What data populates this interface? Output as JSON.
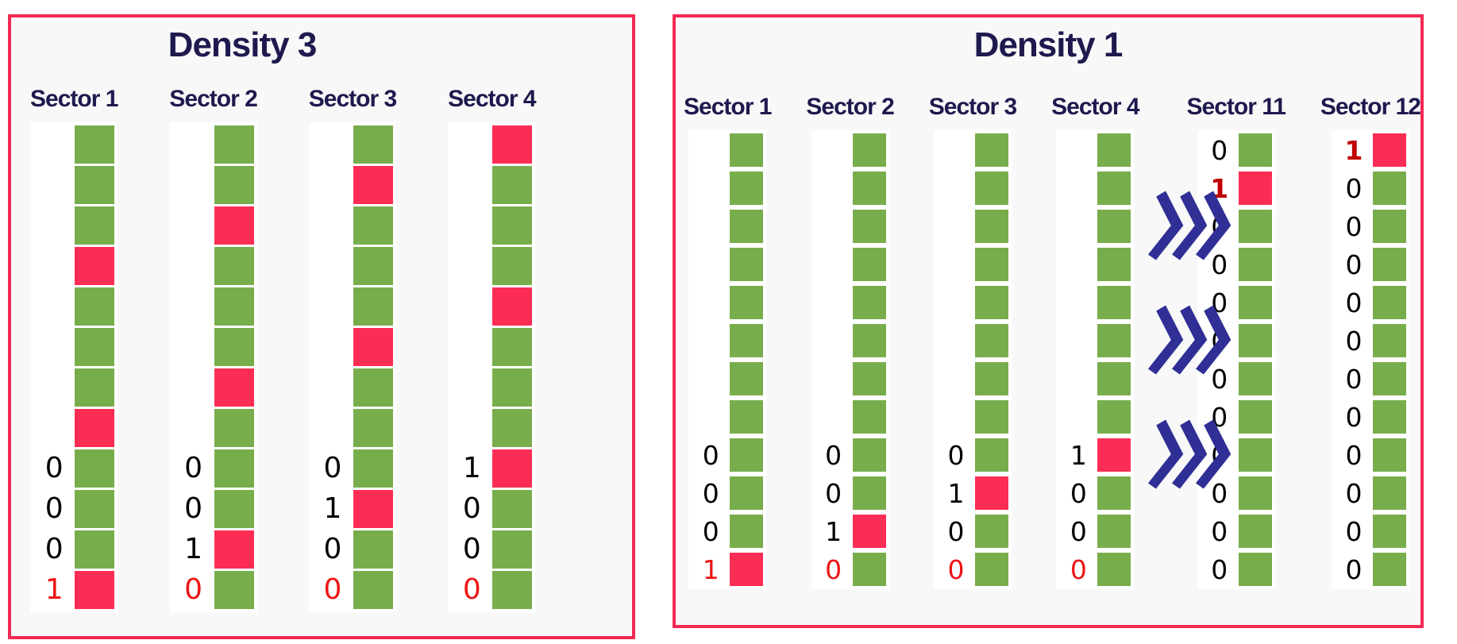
{
  "colors": {
    "green": "#78ad4c",
    "red": "#fc2d55",
    "border": "#f22952",
    "panel_bg": "#f8f8f8",
    "title_text": "#1e1a4e",
    "chevron": "#2f2f96",
    "label_black": "#000000",
    "label_red": "#ee1515",
    "label_darkred": "#c00000"
  },
  "panels": [
    {
      "title": "Density 3",
      "sectors": [
        {
          "name": "Sector 1",
          "cells": [
            "G",
            "G",
            "G",
            "R",
            "G",
            "G",
            "G",
            "R",
            "G",
            "G",
            "G",
            "R"
          ],
          "labels": [
            "",
            "",
            "",
            "",
            "",
            "",
            "",
            "",
            "0",
            "0",
            "0",
            "1"
          ],
          "label_colors": [
            "",
            "",
            "",
            "",
            "",
            "",
            "",
            "",
            "black",
            "black",
            "black",
            "red"
          ]
        },
        {
          "name": "Sector 2",
          "cells": [
            "G",
            "G",
            "R",
            "G",
            "G",
            "G",
            "R",
            "G",
            "G",
            "G",
            "R",
            "G"
          ],
          "labels": [
            "",
            "",
            "",
            "",
            "",
            "",
            "",
            "",
            "0",
            "0",
            "1",
            "0"
          ],
          "label_colors": [
            "",
            "",
            "",
            "",
            "",
            "",
            "",
            "",
            "black",
            "black",
            "black",
            "red"
          ]
        },
        {
          "name": "Sector 3",
          "cells": [
            "G",
            "R",
            "G",
            "G",
            "G",
            "R",
            "G",
            "G",
            "G",
            "R",
            "G",
            "G"
          ],
          "labels": [
            "",
            "",
            "",
            "",
            "",
            "",
            "",
            "",
            "0",
            "1",
            "0",
            "0"
          ],
          "label_colors": [
            "",
            "",
            "",
            "",
            "",
            "",
            "",
            "",
            "black",
            "black",
            "black",
            "red"
          ]
        },
        {
          "name": "Sector 4",
          "cells": [
            "R",
            "G",
            "G",
            "G",
            "R",
            "G",
            "G",
            "G",
            "R",
            "G",
            "G",
            "G"
          ],
          "labels": [
            "",
            "",
            "",
            "",
            "",
            "",
            "",
            "",
            "1",
            "0",
            "0",
            "0"
          ],
          "label_colors": [
            "",
            "",
            "",
            "",
            "",
            "",
            "",
            "",
            "black",
            "black",
            "black",
            "red"
          ]
        }
      ]
    },
    {
      "title": "Density 1",
      "chevrons": {
        "icon": "triple-chevron-right",
        "count": 3,
        "at_rows": [
          3,
          6,
          9
        ]
      },
      "sectors": [
        {
          "name": "Sector 1",
          "cells": [
            "G",
            "G",
            "G",
            "G",
            "G",
            "G",
            "G",
            "G",
            "G",
            "G",
            "G",
            "R"
          ],
          "labels": [
            "",
            "",
            "",
            "",
            "",
            "",
            "",
            "",
            "0",
            "0",
            "0",
            "1"
          ],
          "label_colors": [
            "",
            "",
            "",
            "",
            "",
            "",
            "",
            "",
            "black",
            "black",
            "black",
            "red"
          ]
        },
        {
          "name": "Sector 2",
          "cells": [
            "G",
            "G",
            "G",
            "G",
            "G",
            "G",
            "G",
            "G",
            "G",
            "G",
            "R",
            "G"
          ],
          "labels": [
            "",
            "",
            "",
            "",
            "",
            "",
            "",
            "",
            "0",
            "0",
            "1",
            "0"
          ],
          "label_colors": [
            "",
            "",
            "",
            "",
            "",
            "",
            "",
            "",
            "black",
            "black",
            "black",
            "red"
          ]
        },
        {
          "name": "Sector 3",
          "cells": [
            "G",
            "G",
            "G",
            "G",
            "G",
            "G",
            "G",
            "G",
            "G",
            "R",
            "G",
            "G"
          ],
          "labels": [
            "",
            "",
            "",
            "",
            "",
            "",
            "",
            "",
            "0",
            "1",
            "0",
            "0"
          ],
          "label_colors": [
            "",
            "",
            "",
            "",
            "",
            "",
            "",
            "",
            "black",
            "black",
            "black",
            "red"
          ]
        },
        {
          "name": "Sector 4",
          "cells": [
            "G",
            "G",
            "G",
            "G",
            "G",
            "G",
            "G",
            "G",
            "R",
            "G",
            "G",
            "G"
          ],
          "labels": [
            "",
            "",
            "",
            "",
            "",
            "",
            "",
            "",
            "1",
            "0",
            "0",
            "0"
          ],
          "label_colors": [
            "",
            "",
            "",
            "",
            "",
            "",
            "",
            "",
            "black",
            "black",
            "black",
            "red"
          ]
        },
        {
          "name": "Sector 11",
          "chevrons_before": true,
          "cells": [
            "G",
            "R",
            "G",
            "G",
            "G",
            "G",
            "G",
            "G",
            "G",
            "G",
            "G",
            "G"
          ],
          "labels": [
            "0",
            "1",
            "0",
            "0",
            "0",
            "0",
            "0",
            "0",
            "0",
            "0",
            "0",
            "0"
          ],
          "label_colors": [
            "black",
            "darkred",
            "black",
            "black",
            "black",
            "black",
            "black",
            "black",
            "black",
            "black",
            "black",
            "black"
          ]
        },
        {
          "name": "Sector 12",
          "cells": [
            "R",
            "G",
            "G",
            "G",
            "G",
            "G",
            "G",
            "G",
            "G",
            "G",
            "G",
            "G"
          ],
          "labels": [
            "1",
            "0",
            "0",
            "0",
            "0",
            "0",
            "0",
            "0",
            "0",
            "0",
            "0",
            "0"
          ],
          "label_colors": [
            "darkred",
            "black",
            "black",
            "black",
            "black",
            "black",
            "black",
            "black",
            "black",
            "black",
            "black",
            "black"
          ]
        }
      ]
    }
  ]
}
